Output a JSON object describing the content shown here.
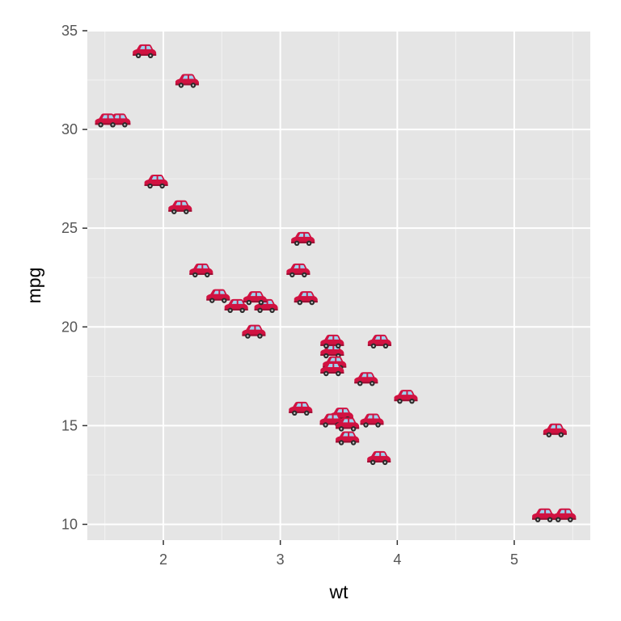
{
  "chart_data": {
    "type": "scatter",
    "title": "",
    "xlabel": "wt",
    "ylabel": "mpg",
    "xlim": [
      1.35,
      5.65
    ],
    "ylim": [
      9.2,
      35.0
    ],
    "x_ticks": [
      2,
      3,
      4,
      5
    ],
    "x_tick_labels": [
      "2",
      "3",
      "4",
      "5"
    ],
    "y_ticks": [
      10,
      15,
      20,
      25,
      30,
      35
    ],
    "y_tick_labels": [
      "10",
      "15",
      "20",
      "25",
      "30",
      "35"
    ],
    "grid": true,
    "marker": "car-icon",
    "colors": {
      "panel": "#e5e5e5",
      "grid_major": "#ffffff",
      "grid_minor": "#f2f2f2",
      "car_body": "#d11241",
      "car_window": "#9fd3f0",
      "wheel": "#2b2b2b"
    },
    "points": [
      {
        "x": 2.62,
        "y": 21.0
      },
      {
        "x": 2.875,
        "y": 21.0
      },
      {
        "x": 2.32,
        "y": 22.8
      },
      {
        "x": 3.215,
        "y": 21.4
      },
      {
        "x": 3.44,
        "y": 18.7
      },
      {
        "x": 3.46,
        "y": 18.1
      },
      {
        "x": 3.57,
        "y": 14.3
      },
      {
        "x": 3.19,
        "y": 24.4
      },
      {
        "x": 3.15,
        "y": 22.8
      },
      {
        "x": 3.44,
        "y": 19.2
      },
      {
        "x": 3.44,
        "y": 17.8
      },
      {
        "x": 4.07,
        "y": 16.4
      },
      {
        "x": 3.73,
        "y": 17.3
      },
      {
        "x": 3.78,
        "y": 15.2
      },
      {
        "x": 5.25,
        "y": 10.4
      },
      {
        "x": 5.424,
        "y": 10.4
      },
      {
        "x": 5.345,
        "y": 14.7
      },
      {
        "x": 2.2,
        "y": 32.4
      },
      {
        "x": 1.615,
        "y": 30.4
      },
      {
        "x": 1.835,
        "y": 33.9
      },
      {
        "x": 2.465,
        "y": 21.5
      },
      {
        "x": 3.52,
        "y": 15.5
      },
      {
        "x": 3.435,
        "y": 15.2
      },
      {
        "x": 3.84,
        "y": 13.3
      },
      {
        "x": 3.845,
        "y": 19.2
      },
      {
        "x": 1.935,
        "y": 27.3
      },
      {
        "x": 2.14,
        "y": 26.0
      },
      {
        "x": 1.513,
        "y": 30.4
      },
      {
        "x": 3.17,
        "y": 15.8
      },
      {
        "x": 2.77,
        "y": 19.7
      },
      {
        "x": 3.57,
        "y": 15.0
      },
      {
        "x": 2.78,
        "y": 21.4
      }
    ]
  }
}
